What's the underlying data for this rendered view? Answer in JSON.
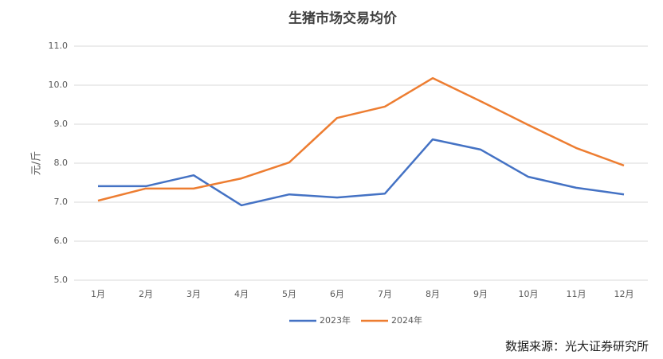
{
  "chart_data": {
    "type": "line",
    "title": "生猪市场交易均价",
    "y_label": "元/斤",
    "categories": [
      "1月",
      "2月",
      "3月",
      "4月",
      "5月",
      "6月",
      "7月",
      "8月",
      "9月",
      "10月",
      "11月",
      "12月"
    ],
    "series": [
      {
        "name": "2023年",
        "color": "#4472c4",
        "values": [
          7.41,
          7.41,
          7.69,
          6.92,
          7.2,
          7.12,
          7.22,
          8.61,
          8.35,
          7.65,
          7.37,
          7.2
        ]
      },
      {
        "name": "2024年",
        "color": "#ed7d31",
        "values": [
          7.04,
          7.35,
          7.35,
          7.61,
          8.02,
          9.16,
          9.45,
          10.18,
          9.59,
          8.98,
          8.39,
          7.94
        ]
      }
    ],
    "ylim": [
      5,
      11
    ],
    "yticks": [
      {
        "value": 5,
        "label": "5.0"
      },
      {
        "value": 6,
        "label": "6.0"
      },
      {
        "value": 7,
        "label": "7.0"
      },
      {
        "value": 8,
        "label": "8.0"
      },
      {
        "value": 9,
        "label": "9.0"
      },
      {
        "value": 10,
        "label": "10.0"
      },
      {
        "value": 11,
        "label": "11.0"
      }
    ],
    "grid": true,
    "legend": "bottom",
    "source": "数据来源：光大证券研究所"
  }
}
